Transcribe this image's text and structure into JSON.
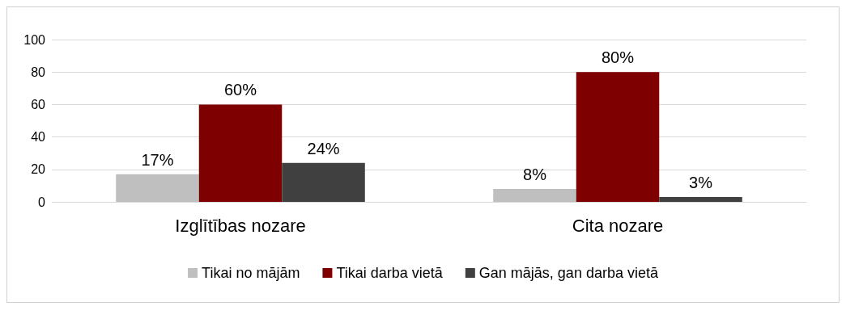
{
  "chart_data": {
    "type": "bar",
    "categories": [
      "Izglītības nozare",
      "Cita nozare"
    ],
    "series": [
      {
        "name": "Tikai no mājām",
        "color": "#bfbfbf",
        "values": [
          17,
          8
        ],
        "value_labels": [
          "17%",
          "8%"
        ]
      },
      {
        "name": "Tikai darba vietā",
        "color": "#7f0000",
        "values": [
          60,
          80
        ],
        "value_labels": [
          "60%",
          "80%"
        ]
      },
      {
        "name": "Gan mājās, gan darba vietā",
        "color": "#404040",
        "values": [
          24,
          3
        ],
        "value_labels": [
          "24%",
          "3%"
        ]
      }
    ],
    "ylim": [
      0,
      100
    ],
    "yticks": [
      0,
      20,
      40,
      60,
      80,
      100
    ],
    "grid": "y",
    "legend": "bottom"
  }
}
